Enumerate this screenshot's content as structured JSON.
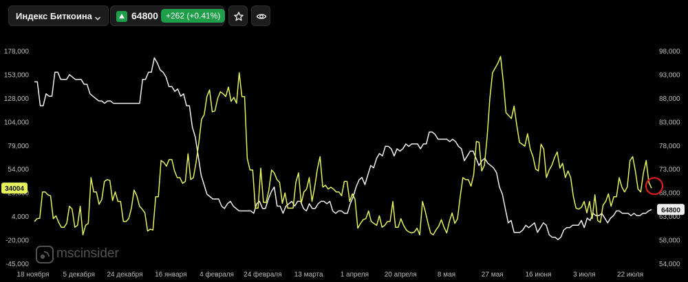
{
  "header": {
    "index_name": "Индекс Биткоина",
    "price": "64800",
    "change": "+262 (+0.41%)"
  },
  "icons": {
    "dropdown": "chevron-down-icon",
    "up": "triangle-up-icon",
    "favorite": "star-icon",
    "visibility": "eye-icon",
    "logo": "msc-logo-icon"
  },
  "watermark": {
    "text": "mscinsider"
  },
  "colors": {
    "background": "#000000",
    "line_white": "#f2f2f2",
    "line_yellow": "#e6f25c",
    "accent_green": "#1f9e4a",
    "marker": "#e02020"
  },
  "chart_data": {
    "type": "line",
    "grid": false,
    "x_ticks": [
      "18 ноября",
      "5 декабря",
      "24 декабря",
      "16 января",
      "4 февраля",
      "24 февраля",
      "13 марта",
      "1 апреля",
      "20 апреля",
      "8 мая",
      "27 мая",
      "16 июня",
      "3 июля",
      "22 июля"
    ],
    "left_axis": {
      "ticks": [
        "178,000",
        "153,000",
        "128,000",
        "104,000",
        "79,000",
        "54,000",
        "29,000",
        "4,000",
        "-20,000",
        "-45,000"
      ],
      "ylim": [
        -45000,
        178000
      ],
      "current_label": "34004"
    },
    "right_axis": {
      "ticks": [
        "98,000",
        "93,000",
        "88,000",
        "83,000",
        "78,000",
        "73,000",
        "68,000",
        "63,000",
        "58,000",
        "54,000"
      ],
      "ylim": [
        53500,
        98000
      ],
      "current_label": "64800"
    },
    "series": [
      {
        "axis": "right",
        "values": [
          91500,
          91500,
          86500,
          86500,
          89000,
          88500,
          88500,
          93500,
          93500,
          92000,
          92000,
          92000,
          93000,
          92500,
          92000,
          92000,
          92000,
          91000,
          91000,
          89000,
          88500,
          88000,
          87500,
          87500,
          87000,
          87500,
          87500,
          87000,
          87000,
          87000,
          87000,
          87000,
          87000,
          87000,
          87000,
          87000,
          87000,
          92000,
          92000,
          93500,
          93500,
          96500,
          95500,
          94000,
          93500,
          92500,
          90500,
          90500,
          89500,
          90000,
          88500,
          89000,
          86500,
          86500,
          82000,
          80000,
          76000,
          72000,
          70000,
          68000,
          67500,
          67000,
          67000,
          67000,
          65500,
          65000,
          66000,
          66500,
          65500,
          65000,
          64500,
          64500,
          64500,
          64500,
          64500,
          64000,
          66000,
          66500,
          65000,
          65000,
          67000,
          68500,
          69500,
          65500,
          65500,
          64000,
          65500,
          66000,
          66500,
          65500,
          66500,
          66500,
          65000,
          64500,
          66000,
          65000,
          65000,
          66000,
          66500,
          66500,
          66000,
          66500,
          64500,
          64000,
          64500,
          64500,
          64000,
          64000,
          66000,
          67500,
          69500,
          71000,
          71500,
          70000,
          72000,
          74000,
          73500,
          75500,
          76500,
          76000,
          78000,
          78000,
          77500,
          76000,
          77500,
          77000,
          77500,
          78500,
          78000,
          78500,
          78500,
          78500,
          77500,
          78500,
          78500,
          81000,
          81000,
          80500,
          79500,
          79500,
          79500,
          79500,
          79000,
          79500,
          79000,
          78000,
          77500,
          75000,
          76000,
          77000,
          77000,
          75500,
          74000,
          75000,
          75500,
          74500,
          74000,
          73500,
          72500,
          69500,
          68000,
          65000,
          62000,
          62500,
          60000,
          60000,
          60000,
          60500,
          61500,
          61000,
          61500,
          62000,
          60000,
          61000,
          62000,
          61500,
          59500,
          59000,
          59000,
          58500,
          59000,
          60500,
          61000,
          61000,
          61500,
          61500,
          61500,
          62500,
          61000,
          63000,
          62500,
          64000,
          63500,
          63500,
          64000,
          63000,
          62000,
          63000,
          63500,
          64500,
          64500,
          64000,
          64000,
          64000,
          63500,
          64000,
          63500,
          63500,
          64000,
          64000,
          64500,
          64800
        ]
      },
      {
        "axis": "left",
        "values": [
          -1000,
          2000,
          2500,
          30000,
          30000,
          27000,
          26000,
          2000,
          5000,
          -2000,
          -7000,
          -7000,
          -3000,
          15000,
          12000,
          -7000,
          -5000,
          15000,
          -15000,
          -5000,
          -3000,
          45000,
          30000,
          30000,
          17000,
          22000,
          41000,
          43000,
          42000,
          21000,
          30000,
          20000,
          20000,
          -1000,
          -1000,
          2000,
          13000,
          32000,
          26000,
          15000,
          12000,
          8000,
          -11000,
          -9000,
          -10000,
          25000,
          25000,
          63000,
          61000,
          57000,
          64000,
          64000,
          52000,
          45000,
          45000,
          39000,
          41000,
          70000,
          43000,
          45000,
          61000,
          81000,
          106000,
          111000,
          130000,
          137000,
          114000,
          115000,
          128000,
          135000,
          133000,
          130000,
          140000,
          125000,
          129000,
          123000,
          155000,
          130000,
          130000,
          65000,
          53000,
          53000,
          13000,
          13000,
          55000,
          19000,
          19000,
          32000,
          53000,
          50000,
          43000,
          40000,
          18000,
          29000,
          13000,
          13000,
          13000,
          40000,
          50000,
          18000,
          30000,
          33000,
          45000,
          20000,
          35000,
          54000,
          67000,
          35000,
          37000,
          33000,
          35000,
          33000,
          30000,
          30000,
          26000,
          41000,
          41000,
          20000,
          28000,
          22000,
          -8000,
          -3000,
          1000,
          2000,
          10000,
          -1000,
          -3000,
          -5000,
          5000,
          -7000,
          -5000,
          -1000,
          -1000,
          20000,
          -7000,
          -7000,
          2000,
          -5000,
          -10000,
          -12000,
          -13000,
          -12000,
          -8000,
          -15000,
          20000,
          10000,
          -2000,
          -13000,
          -15000,
          -10000,
          -6000,
          1000,
          -7000,
          -13000,
          -1000,
          8000,
          -3000,
          2000,
          25000,
          45000,
          43000,
          43000,
          36000,
          48000,
          83000,
          82000,
          52000,
          58000,
          88000,
          128000,
          155000,
          160000,
          165000,
          172000,
          145000,
          113000,
          110000,
          107000,
          120000,
          100000,
          82000,
          80000,
          78000,
          91000,
          75000,
          67000,
          54000,
          52000,
          80000,
          75000,
          45000,
          53000,
          58000,
          66000,
          72000,
          55000,
          60000,
          45000,
          52000,
          45000,
          25000,
          13000,
          12000,
          14000,
          20000,
          8000,
          20000,
          2000,
          27000,
          0,
          -2000,
          16000,
          20000,
          28000,
          15000,
          25000,
          25000,
          45000,
          35000,
          30000,
          35000,
          63000,
          67000,
          52000,
          33000,
          30000,
          50000,
          63000,
          40000,
          34004
        ]
      }
    ]
  }
}
